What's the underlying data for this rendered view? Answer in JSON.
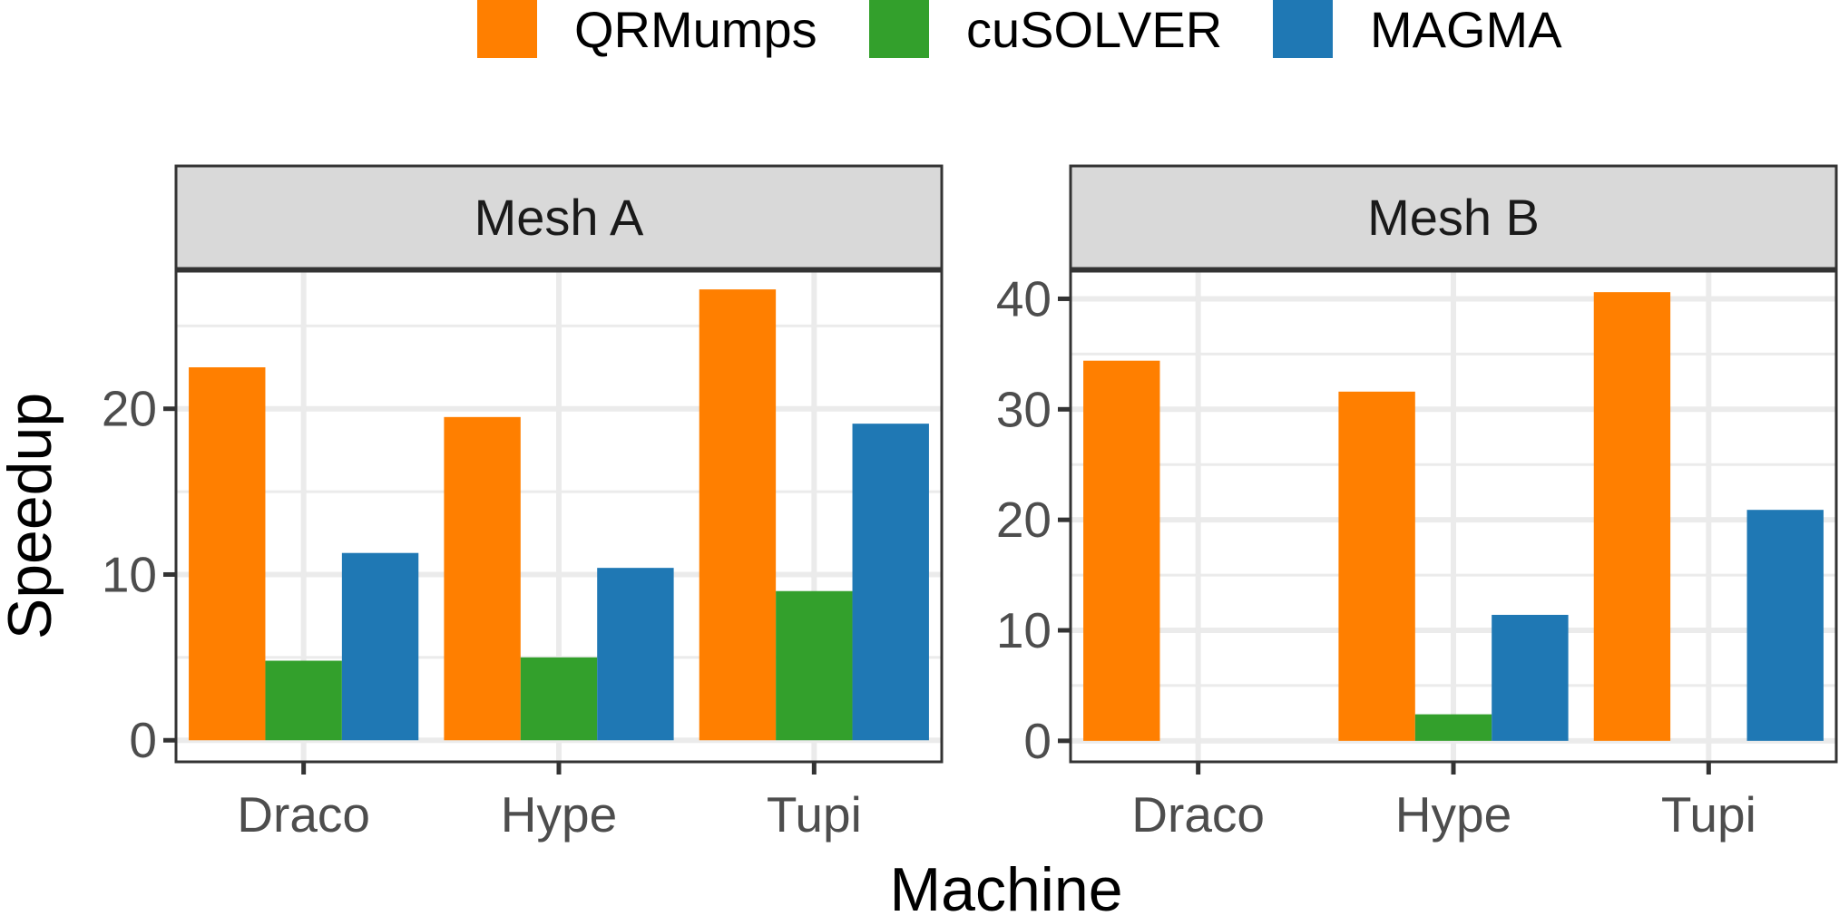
{
  "chart_data": {
    "type": "bar",
    "xlabel": "Machine",
    "ylabel": "Speedup",
    "legend_position": "top",
    "categories": [
      "Draco",
      "Hype",
      "Tupi"
    ],
    "series_names": [
      "QRMumps",
      "cuSOLVER",
      "MAGMA"
    ],
    "colors": {
      "QRMumps": "#FF7F00",
      "cuSOLVER": "#33A02C",
      "MAGMA": "#1F78B4"
    },
    "panels": [
      {
        "title": "Mesh A",
        "ylim": [
          -1.3,
          28.3
        ],
        "yticks": [
          0,
          10,
          20
        ],
        "ytick_labels": [
          "0",
          "10",
          "20"
        ],
        "series": [
          {
            "name": "QRMumps",
            "values": [
              22.5,
              19.5,
              27.2
            ]
          },
          {
            "name": "cuSOLVER",
            "values": [
              4.8,
              5.0,
              9.0
            ]
          },
          {
            "name": "MAGMA",
            "values": [
              11.3,
              10.4,
              19.1
            ]
          }
        ]
      },
      {
        "title": "Mesh B",
        "ylim": [
          -1.9,
          42.5
        ],
        "yticks": [
          0,
          10,
          20,
          30,
          40
        ],
        "ytick_labels": [
          "0",
          "10",
          "20",
          "30",
          "40"
        ],
        "series": [
          {
            "name": "QRMumps",
            "values": [
              34.4,
              31.6,
              40.6
            ]
          },
          {
            "name": "cuSOLVER",
            "values": [
              0,
              2.4,
              0
            ]
          },
          {
            "name": "MAGMA",
            "values": [
              0,
              11.4,
              20.9
            ]
          }
        ]
      }
    ]
  }
}
